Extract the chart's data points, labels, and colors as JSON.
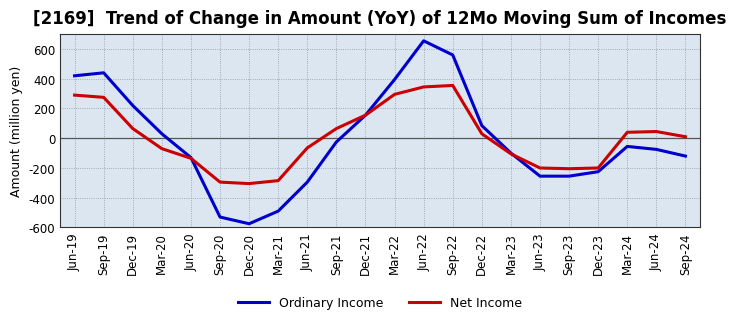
{
  "title": "[2169]  Trend of Change in Amount (YoY) of 12Mo Moving Sum of Incomes",
  "ylabel": "Amount (million yen)",
  "x_labels": [
    "Jun-19",
    "Sep-19",
    "Dec-19",
    "Mar-20",
    "Jun-20",
    "Sep-20",
    "Dec-20",
    "Mar-21",
    "Jun-21",
    "Sep-21",
    "Dec-21",
    "Mar-22",
    "Jun-22",
    "Sep-22",
    "Dec-22",
    "Mar-23",
    "Jun-23",
    "Sep-23",
    "Dec-23",
    "Mar-24",
    "Jun-24",
    "Sep-24"
  ],
  "ordinary_income": [
    420,
    440,
    220,
    30,
    -130,
    -530,
    -575,
    -490,
    -295,
    -25,
    155,
    395,
    655,
    560,
    85,
    -100,
    -255,
    -255,
    -225,
    -55,
    -75,
    -120
  ],
  "net_income": [
    290,
    275,
    65,
    -70,
    -135,
    -295,
    -305,
    -285,
    -65,
    65,
    155,
    295,
    345,
    355,
    30,
    -105,
    -200,
    -205,
    -200,
    40,
    45,
    10
  ],
  "ordinary_color": "#0000cc",
  "net_color": "#cc0000",
  "plot_bg_color": "#dce6f1",
  "fig_bg_color": "#ffffff",
  "grid_color": "#8899aa",
  "ylim": [
    -600,
    700
  ],
  "yticks": [
    -600,
    -400,
    -200,
    0,
    200,
    400,
    600
  ],
  "legend_ordinary": "Ordinary Income",
  "legend_net": "Net Income",
  "line_width": 2.2,
  "title_fontsize": 12,
  "axis_fontsize": 9,
  "tick_fontsize": 8.5
}
